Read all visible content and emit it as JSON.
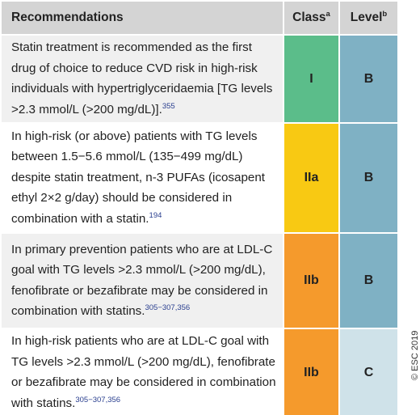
{
  "table": {
    "header": {
      "recommendations": "Recommendations",
      "class": "Class",
      "class_sup": "a",
      "level": "Level",
      "level_sup": "b"
    },
    "rows": [
      {
        "text": "Statin treatment is recommended as the first drug of choice to reduce CVD risk in high-risk individuals with hypertriglyceridaemia [TG levels >2.3 mmol/L (>200 mg/dL)].",
        "ref": "355",
        "class": "I",
        "level": "B"
      },
      {
        "text": "In high-risk (or above) patients with TG levels between 1.5−5.6 mmol/L (135−499 mg/dL) despite statin treatment, n-3 PUFAs (icosapent ethyl 2×2 g/day) should be considered in combination with a statin.",
        "ref": "194",
        "class": "IIa",
        "level": "B"
      },
      {
        "text": "In primary prevention patients who are at LDL-C goal with TG levels >2.3 mmol/L (>200 mg/dL), fenofibrate or bezafibrate may be considered in combination with statins.",
        "ref": "305−307,356",
        "class": "IIb",
        "level": "B"
      },
      {
        "text": "In high-risk patients who are at LDL-C goal with TG levels >2.3 mmol/L (>200 mg/dL), fenofibrate or bezafibrate may be considered in combination with statins.",
        "ref": "305−307,356",
        "class": "IIb",
        "level": "C"
      }
    ],
    "copyright": "© ESC 2019"
  }
}
